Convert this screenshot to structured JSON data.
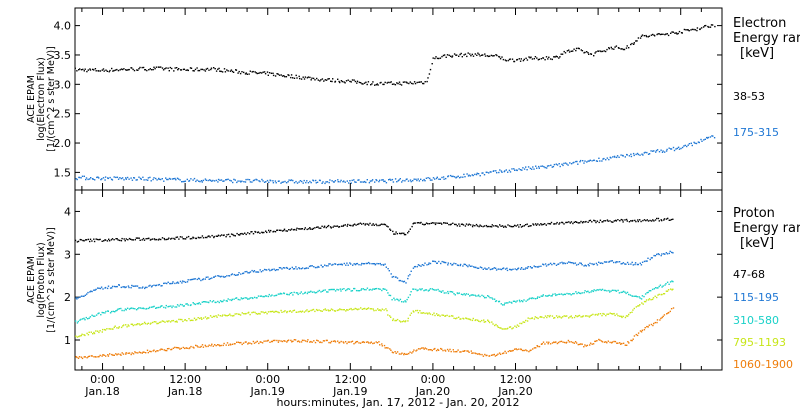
{
  "chart_data": [
    {
      "type": "scatter",
      "panel": "electron",
      "ylabel": [
        "ACE EPAM",
        "log(Electron Flux)",
        "[1/(cm^2 s ster MeV)]"
      ],
      "ylim": [
        1.2,
        4.3
      ],
      "yticks": [
        "1.5",
        "2.0",
        "2.5",
        "3.0",
        "3.5",
        "4.0"
      ],
      "xlim": [
        -4,
        90
      ],
      "x_unit": "hours since 00:00 Jan. 18, 2012",
      "legend": {
        "title": [
          "Electron",
          "Energy rar",
          "[keV]"
        ],
        "placement": "right"
      },
      "series": [
        {
          "name": "38-53",
          "color": "#000000",
          "points": [
            [
              -4,
              3.26
            ],
            [
              0,
              3.25
            ],
            [
              4,
              3.27
            ],
            [
              8,
              3.28
            ],
            [
              12,
              3.26
            ],
            [
              16,
              3.27
            ],
            [
              20,
              3.22
            ],
            [
              24,
              3.19
            ],
            [
              28,
              3.14
            ],
            [
              32,
              3.09
            ],
            [
              36,
              3.06
            ],
            [
              40,
              3.02
            ],
            [
              44,
              3.03
            ],
            [
              47,
              3.05
            ],
            [
              48,
              3.45
            ],
            [
              50,
              3.5
            ],
            [
              54,
              3.52
            ],
            [
              57,
              3.49
            ],
            [
              59,
              3.42
            ],
            [
              62,
              3.45
            ],
            [
              66,
              3.47
            ],
            [
              67,
              3.56
            ],
            [
              69,
              3.6
            ],
            [
              71,
              3.52
            ],
            [
              74,
              3.64
            ],
            [
              76,
              3.62
            ],
            [
              78,
              3.82
            ],
            [
              82,
              3.87
            ],
            [
              86,
              3.95
            ],
            [
              89,
              4.03
            ]
          ]
        },
        {
          "name": "175-315",
          "color": "#1f77d4",
          "points": [
            [
              -4,
              1.42
            ],
            [
              0,
              1.41
            ],
            [
              6,
              1.4
            ],
            [
              12,
              1.38
            ],
            [
              18,
              1.37
            ],
            [
              24,
              1.36
            ],
            [
              30,
              1.35
            ],
            [
              36,
              1.36
            ],
            [
              40,
              1.36
            ],
            [
              44,
              1.38
            ],
            [
              48,
              1.4
            ],
            [
              52,
              1.45
            ],
            [
              56,
              1.5
            ],
            [
              60,
              1.56
            ],
            [
              64,
              1.6
            ],
            [
              68,
              1.66
            ],
            [
              72,
              1.73
            ],
            [
              76,
              1.79
            ],
            [
              80,
              1.86
            ],
            [
              84,
              1.93
            ],
            [
              89,
              2.14
            ]
          ]
        }
      ]
    },
    {
      "type": "scatter",
      "panel": "proton",
      "ylabel": [
        "ACE EPAM",
        "log(Proton Flux)",
        "[1/(cm^2 s ster MeV)]"
      ],
      "ylim": [
        0.3,
        4.5
      ],
      "yticks": [
        "1",
        "2",
        "3",
        "4"
      ],
      "xlim": [
        -4,
        90
      ],
      "x_unit": "hours since 00:00 Jan. 18, 2012",
      "xticks": [
        {
          "x": 0,
          "time": "0:00",
          "date": "Jan.18"
        },
        {
          "x": 12,
          "time": "12:00",
          "date": "Jan.18"
        },
        {
          "x": 24,
          "time": "0:00",
          "date": "Jan.19"
        },
        {
          "x": 36,
          "time": "12:00",
          "date": "Jan.19"
        },
        {
          "x": 48,
          "time": "0:00",
          "date": "Jan.20"
        },
        {
          "x": 60,
          "time": "12:00",
          "date": "Jan.20"
        }
      ],
      "xlabel": "hours:minutes, Jan. 17, 2012 - Jan. 20, 2012",
      "legend": {
        "title": [
          "Proton",
          "Energy rar",
          "[keV]"
        ],
        "placement": "right"
      },
      "series": [
        {
          "name": "47-68",
          "color": "#000000",
          "points": [
            [
              -4,
              3.33
            ],
            [
              0,
              3.35
            ],
            [
              6,
              3.37
            ],
            [
              12,
              3.4
            ],
            [
              18,
              3.45
            ],
            [
              22,
              3.52
            ],
            [
              26,
              3.58
            ],
            [
              30,
              3.62
            ],
            [
              34,
              3.67
            ],
            [
              38,
              3.72
            ],
            [
              41,
              3.7
            ],
            [
              42,
              3.52
            ],
            [
              44,
              3.47
            ],
            [
              45,
              3.72
            ],
            [
              48,
              3.74
            ],
            [
              52,
              3.7
            ],
            [
              56,
              3.68
            ],
            [
              60,
              3.67
            ],
            [
              64,
              3.72
            ],
            [
              68,
              3.76
            ],
            [
              72,
              3.79
            ],
            [
              76,
              3.8
            ],
            [
              80,
              3.82
            ],
            [
              83,
              3.84
            ]
          ]
        },
        {
          "name": "115-195",
          "color": "#1f77d4",
          "points": [
            [
              -4,
              1.98
            ],
            [
              -1,
              2.2
            ],
            [
              2,
              2.28
            ],
            [
              6,
              2.24
            ],
            [
              10,
              2.35
            ],
            [
              14,
              2.43
            ],
            [
              18,
              2.52
            ],
            [
              22,
              2.62
            ],
            [
              26,
              2.68
            ],
            [
              30,
              2.72
            ],
            [
              34,
              2.78
            ],
            [
              38,
              2.8
            ],
            [
              41,
              2.78
            ],
            [
              42,
              2.5
            ],
            [
              44,
              2.35
            ],
            [
              45,
              2.72
            ],
            [
              48,
              2.84
            ],
            [
              52,
              2.76
            ],
            [
              56,
              2.68
            ],
            [
              60,
              2.66
            ],
            [
              64,
              2.76
            ],
            [
              68,
              2.82
            ],
            [
              70,
              2.76
            ],
            [
              74,
              2.84
            ],
            [
              78,
              2.78
            ],
            [
              80,
              2.98
            ],
            [
              83,
              3.08
            ]
          ]
        },
        {
          "name": "310-580",
          "color": "#19d1c8",
          "points": [
            [
              -4,
              1.43
            ],
            [
              -1,
              1.6
            ],
            [
              2,
              1.72
            ],
            [
              6,
              1.76
            ],
            [
              10,
              1.8
            ],
            [
              14,
              1.88
            ],
            [
              18,
              1.94
            ],
            [
              22,
              2.02
            ],
            [
              26,
              2.08
            ],
            [
              30,
              2.12
            ],
            [
              34,
              2.18
            ],
            [
              38,
              2.2
            ],
            [
              41,
              2.2
            ],
            [
              42,
              1.98
            ],
            [
              44,
              1.92
            ],
            [
              45,
              2.2
            ],
            [
              48,
              2.18
            ],
            [
              52,
              2.08
            ],
            [
              56,
              2.02
            ],
            [
              58,
              1.86
            ],
            [
              60,
              1.9
            ],
            [
              64,
              2.04
            ],
            [
              68,
              2.1
            ],
            [
              72,
              2.18
            ],
            [
              76,
              2.13
            ],
            [
              78,
              1.98
            ],
            [
              80,
              2.2
            ],
            [
              83,
              2.4
            ]
          ]
        },
        {
          "name": "795-1193",
          "color": "#c8e61a",
          "points": [
            [
              -4,
              1.1
            ],
            [
              -1,
              1.2
            ],
            [
              2,
              1.32
            ],
            [
              6,
              1.4
            ],
            [
              10,
              1.45
            ],
            [
              14,
              1.52
            ],
            [
              18,
              1.6
            ],
            [
              22,
              1.64
            ],
            [
              26,
              1.68
            ],
            [
              30,
              1.7
            ],
            [
              34,
              1.72
            ],
            [
              38,
              1.74
            ],
            [
              41,
              1.72
            ],
            [
              42,
              1.48
            ],
            [
              44,
              1.44
            ],
            [
              45,
              1.7
            ],
            [
              48,
              1.62
            ],
            [
              52,
              1.52
            ],
            [
              56,
              1.45
            ],
            [
              58,
              1.28
            ],
            [
              60,
              1.32
            ],
            [
              62,
              1.52
            ],
            [
              64,
              1.56
            ],
            [
              68,
              1.55
            ],
            [
              72,
              1.6
            ],
            [
              74,
              1.62
            ],
            [
              76,
              1.55
            ],
            [
              78,
              1.85
            ],
            [
              80,
              2.0
            ],
            [
              83,
              2.22
            ]
          ]
        },
        {
          "name": "1060-1900",
          "color": "#ef7d0a",
          "points": [
            [
              -4,
              0.6
            ],
            [
              0,
              0.65
            ],
            [
              4,
              0.7
            ],
            [
              8,
              0.78
            ],
            [
              12,
              0.84
            ],
            [
              16,
              0.9
            ],
            [
              20,
              0.94
            ],
            [
              24,
              0.98
            ],
            [
              28,
              1.0
            ],
            [
              32,
              0.98
            ],
            [
              36,
              0.96
            ],
            [
              40,
              0.95
            ],
            [
              42,
              0.75
            ],
            [
              44,
              0.68
            ],
            [
              46,
              0.82
            ],
            [
              50,
              0.78
            ],
            [
              54,
              0.72
            ],
            [
              56,
              0.62
            ],
            [
              58,
              0.7
            ],
            [
              60,
              0.8
            ],
            [
              62,
              0.76
            ],
            [
              64,
              0.95
            ],
            [
              68,
              0.98
            ],
            [
              70,
              0.88
            ],
            [
              72,
              1.0
            ],
            [
              76,
              0.92
            ],
            [
              78,
              1.2
            ],
            [
              80,
              1.4
            ],
            [
              83,
              1.78
            ]
          ]
        }
      ]
    }
  ]
}
